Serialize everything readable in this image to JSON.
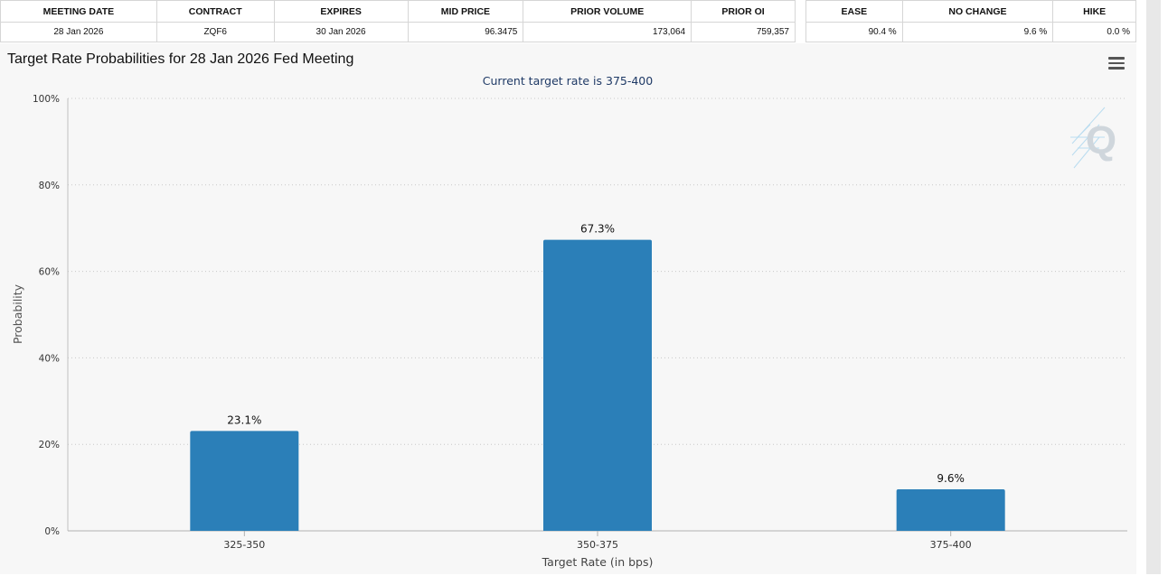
{
  "contract_table": {
    "headers": [
      "MEETING DATE",
      "CONTRACT",
      "EXPIRES",
      "MID PRICE",
      "PRIOR VOLUME",
      "PRIOR OI"
    ],
    "row": [
      "28 Jan 2026",
      "ZQF6",
      "30 Jan 2026",
      "96.3475",
      "173,064",
      "759,357"
    ]
  },
  "probability_table": {
    "headers": [
      "EASE",
      "NO CHANGE",
      "HIKE"
    ],
    "row": [
      "90.4 %",
      "9.6 %",
      "0.0 %"
    ]
  },
  "logo_letter": "Q",
  "icons": {
    "menu": "hamburger-menu-icon",
    "logo": "q-logo-icon"
  },
  "colors": {
    "bar": "#2b7fb8",
    "panel_bg": "#f7f7f7",
    "subtitle": "#1f3a66"
  },
  "chart_data": {
    "type": "bar",
    "title": "Target Rate Probabilities for 28 Jan 2026 Fed Meeting",
    "subtitle": "Current target rate is 375-400",
    "xlabel": "Target Rate (in bps)",
    "ylabel": "Probability",
    "categories": [
      "325-350",
      "350-375",
      "375-400"
    ],
    "values": [
      23.1,
      67.3,
      9.6
    ],
    "data_labels": [
      "23.1%",
      "67.3%",
      "9.6%"
    ],
    "ylim": [
      0,
      100
    ],
    "yticks": [
      0,
      20,
      40,
      60,
      80,
      100
    ],
    "ytick_labels": [
      "0%",
      "20%",
      "40%",
      "60%",
      "80%",
      "100%"
    ],
    "grid": "horizontal dotted",
    "legend": "none"
  }
}
